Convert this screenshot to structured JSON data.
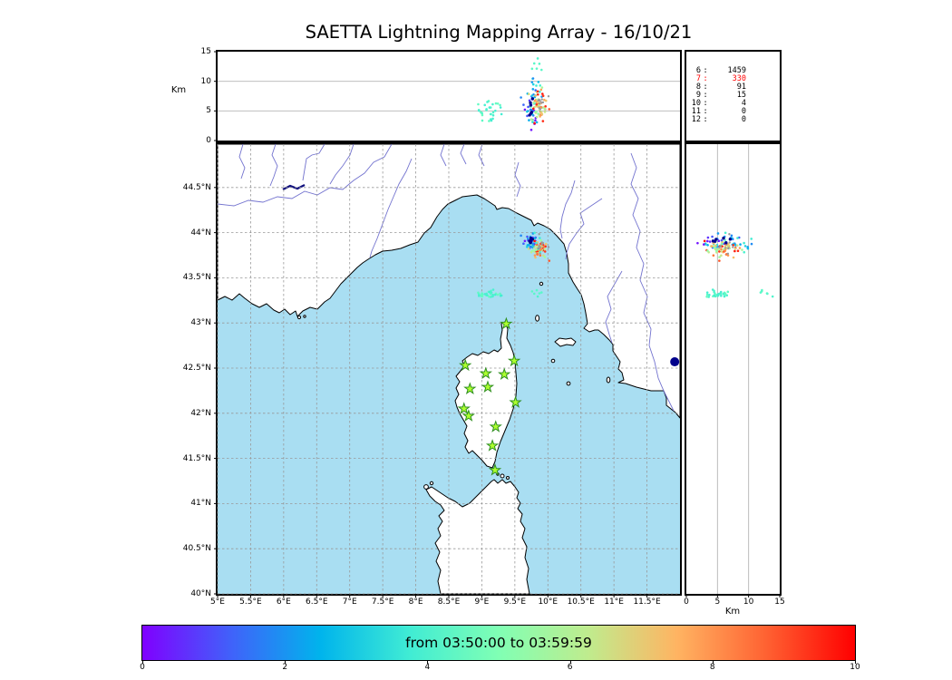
{
  "title": "SAETTA Lightning Mapping Array - 16/10/21",
  "stats": {
    "rows": [
      {
        "id": "6",
        "count": "1459",
        "highlight": false
      },
      {
        "id": "7",
        "count": "330",
        "highlight": true
      },
      {
        "id": "8",
        "count": "91",
        "highlight": false
      },
      {
        "id": "9",
        "count": "15",
        "highlight": false
      },
      {
        "id": "10",
        "count": "4",
        "highlight": false
      },
      {
        "id": "11",
        "count": "0",
        "highlight": false
      },
      {
        "id": "12",
        "count": "0",
        "highlight": false
      }
    ]
  },
  "axes": {
    "alt": {
      "min": 0,
      "max": 15,
      "unit": "Km",
      "grid": [
        5,
        10
      ],
      "ticks": [
        {
          "v": 0,
          "l": "0"
        },
        {
          "v": 5,
          "l": "5"
        },
        {
          "v": 10,
          "l": "10"
        },
        {
          "v": 15,
          "l": "15"
        }
      ]
    },
    "lon": {
      "min": 5,
      "max": 12,
      "ticks": [
        {
          "v": 5,
          "l": "5°E"
        },
        {
          "v": 5.5,
          "l": "5.5°E"
        },
        {
          "v": 6,
          "l": "6°E"
        },
        {
          "v": 6.5,
          "l": "6.5°E"
        },
        {
          "v": 7,
          "l": "7°E"
        },
        {
          "v": 7.5,
          "l": "7.5°E"
        },
        {
          "v": 8,
          "l": "8°E"
        },
        {
          "v": 8.5,
          "l": "8.5°E"
        },
        {
          "v": 9,
          "l": "9°E"
        },
        {
          "v": 9.5,
          "l": "9.5°E"
        },
        {
          "v": 10,
          "l": "10°E"
        },
        {
          "v": 10.5,
          "l": "10.5°E"
        },
        {
          "v": 11,
          "l": "11°E"
        },
        {
          "v": 11.5,
          "l": "11.5°E"
        }
      ]
    },
    "lat": {
      "min": 40,
      "max": 44.98,
      "ticks": [
        {
          "v": 40,
          "l": "40°N"
        },
        {
          "v": 40.5,
          "l": "40.5°N"
        },
        {
          "v": 41,
          "l": "41°N"
        },
        {
          "v": 41.5,
          "l": "41.5°N"
        },
        {
          "v": 42,
          "l": "42°N"
        },
        {
          "v": 42.5,
          "l": "42.5°N"
        },
        {
          "v": 43,
          "l": "43°N"
        },
        {
          "v": 43.5,
          "l": "43.5°N"
        },
        {
          "v": 44,
          "l": "44°N"
        },
        {
          "v": 44.5,
          "l": "44.5°N"
        }
      ]
    }
  },
  "colorbar": {
    "label": "from 03:50:00 to 03:59:59",
    "min": 0,
    "max": 10,
    "ticks": [
      0,
      2,
      4,
      6,
      8,
      10
    ],
    "gradient_stops": [
      {
        "t": 0,
        "color": "#8000ff"
      },
      {
        "t": 0.125,
        "color": "#4062fa"
      },
      {
        "t": 0.25,
        "color": "#00b4ec"
      },
      {
        "t": 0.375,
        "color": "#40ecd4"
      },
      {
        "t": 0.5,
        "color": "#80ffb4"
      },
      {
        "t": 0.625,
        "color": "#bfec8e"
      },
      {
        "t": 0.75,
        "color": "#ffb462"
      },
      {
        "t": 0.875,
        "color": "#ff6232"
      },
      {
        "t": 1,
        "color": "#ff0000"
      }
    ]
  },
  "chart_data": {
    "type": "scatter",
    "title": "SAETTA Lightning Mapping Array - 16/10/21",
    "time_window": {
      "from": "03:50:00",
      "to": "03:59:59",
      "color_scale_minutes": [
        0,
        10
      ]
    },
    "panels": [
      {
        "name": "altitude-longitude",
        "x_range": [
          5,
          12
        ],
        "y_range_km": [
          0,
          15
        ],
        "grid": "solid 5,10"
      },
      {
        "name": "map",
        "lon_range": [
          5,
          12
        ],
        "lat_range": [
          40,
          44.98
        ],
        "grid": "dashed 0.5deg"
      },
      {
        "name": "altitude-latitude",
        "x_range_km": [
          0,
          15
        ],
        "y_range": [
          40,
          44.98
        ],
        "grid": "solid 5,10"
      }
    ],
    "map_style": {
      "sea": "#a9def2",
      "land": "#ffffff",
      "coast": "#000000",
      "river": "#7373cf",
      "grid": "#999999",
      "lake": "#10107e"
    },
    "station_style": {
      "fill": "#adff2f",
      "stroke": "#2f8f1f"
    },
    "stations": [
      {
        "lon": 9.37,
        "lat": 42.99
      },
      {
        "lon": 8.75,
        "lat": 42.53
      },
      {
        "lon": 9.49,
        "lat": 42.58
      },
      {
        "lon": 9.06,
        "lat": 42.44
      },
      {
        "lon": 9.34,
        "lat": 42.43
      },
      {
        "lon": 8.82,
        "lat": 42.27
      },
      {
        "lon": 9.09,
        "lat": 42.29
      },
      {
        "lon": 9.51,
        "lat": 42.12
      },
      {
        "lon": 8.73,
        "lat": 42.05
      },
      {
        "lon": 8.8,
        "lat": 41.97
      },
      {
        "lon": 9.21,
        "lat": 41.85
      },
      {
        "lon": 9.16,
        "lat": 41.64
      },
      {
        "lon": 9.2,
        "lat": 41.37
      }
    ],
    "features": [
      {
        "name": "lake-bolsena-dot",
        "lon": 11.92,
        "lat": 42.57,
        "r": 5,
        "color": "#00008b"
      }
    ],
    "clusters": [
      {
        "name": "storm-cell-early",
        "lon": 9.76,
        "lon_sd": 0.07,
        "lat": 43.88,
        "lat_sd": 0.045,
        "alt": 6.2,
        "alt_sd": 1.6,
        "count": 38,
        "t_min": 0.2,
        "t_max": 4.5
      },
      {
        "name": "storm-cell-late",
        "lon": 9.87,
        "lon_sd": 0.06,
        "lat": 43.82,
        "lat_sd": 0.045,
        "alt": 5.8,
        "alt_sd": 1.5,
        "count": 60,
        "t_min": 5.0,
        "t_max": 9.9
      },
      {
        "name": "storm-cell-top",
        "lon": 9.83,
        "lon_sd": 0.05,
        "lat": 43.85,
        "lat_sd": 0.04,
        "alt": 9.6,
        "alt_sd": 0.7,
        "count": 8,
        "t_min": 1.0,
        "t_max": 6.0
      },
      {
        "name": "west-cell",
        "lon": 9.1,
        "lon_sd": 0.1,
        "lat": 43.32,
        "lat_sd": 0.018,
        "alt": 4.9,
        "alt_sd": 1.0,
        "count": 30,
        "t_min": 3.8,
        "t_max": 4.6
      },
      {
        "name": "west-cell-high",
        "lon": 9.82,
        "lon_sd": 0.05,
        "lat": 43.33,
        "lat_sd": 0.025,
        "alt": 12.3,
        "alt_sd": 0.6,
        "count": 6,
        "t_min": 3.9,
        "t_max": 4.5
      },
      {
        "name": "noise-gray",
        "lon": 9.88,
        "lon_sd": 0.07,
        "lat": 43.83,
        "lat_sd": 0.05,
        "alt": 6.0,
        "alt_sd": 1.6,
        "count": 10,
        "t_min": 0,
        "t_max": 10,
        "color": "#9a9a9a",
        "r": 1.2
      },
      {
        "name": "navy-points",
        "lon": 9.74,
        "lon_sd": 0.03,
        "lat": 43.92,
        "lat_sd": 0.02,
        "alt": 5.6,
        "alt_sd": 1.0,
        "count": 6,
        "t_min": 0,
        "t_max": 1,
        "color": "#00008b",
        "r": 1.7
      }
    ]
  }
}
